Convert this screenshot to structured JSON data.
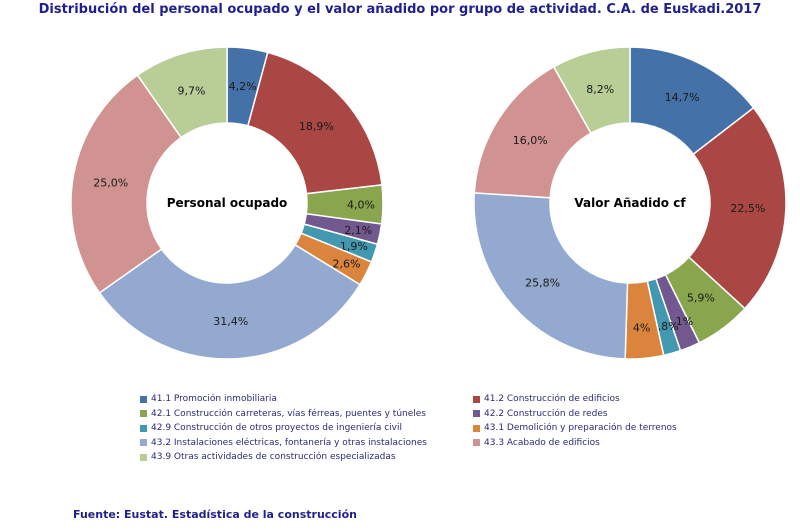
{
  "title": "Distribución del personal ocupado y el valor añadido por grupo de actividad. C.A. de Euskadi.2017",
  "source": "Fuente: Eustat. Estadística de la construcción",
  "legend": [
    {
      "label": "41.1 Promoción inmobiliaria",
      "color": "#4472a8"
    },
    {
      "label": "41.2 Construcción de edificios",
      "color": "#aa4644"
    },
    {
      "label": "42.1 Construcción carreteras, vías férreas, puentes y túneles",
      "color": "#89a54e"
    },
    {
      "label": "42.2 Construcción de redes",
      "color": "#71588f"
    },
    {
      "label": "42.9 Construcción de otros proyectos de ingeniería civil",
      "color": "#4198af"
    },
    {
      "label": "43.1 Demolición y preparación de terrenos",
      "color": "#db843d"
    },
    {
      "label": "43.2 Instalaciones eléctricas, fontanería y otras instalaciones",
      "color": "#93a9cf"
    },
    {
      "label": "43.3 Acabado de edificios",
      "color": "#d19392"
    },
    {
      "label": "43.9 Otras actividades de construcción especializadas",
      "color": "#b9cd96"
    }
  ],
  "chart_data": [
    {
      "type": "pie",
      "center_label": "Personal ocupado",
      "values": [
        4.2,
        18.9,
        4.0,
        2.1,
        1.9,
        2.6,
        31.4,
        25.0,
        9.7
      ],
      "data_labels": [
        "4,2%",
        "18,9%",
        "4,0%",
        "2,1%",
        "1,9%",
        "2,6%",
        "31,4%",
        "25,0%",
        "9,7%"
      ]
    },
    {
      "type": "pie",
      "center_label": "Valor Añadido cf",
      "values": [
        14.7,
        22.5,
        5.9,
        2.1,
        1.8,
        4.0,
        25.8,
        16.0,
        8.2
      ],
      "data_labels": [
        "14,7%",
        "22,5%",
        "5,9%",
        "2,1%",
        "1,8%",
        "4%",
        "25,8%",
        "16,0%",
        "8,2%"
      ]
    }
  ]
}
